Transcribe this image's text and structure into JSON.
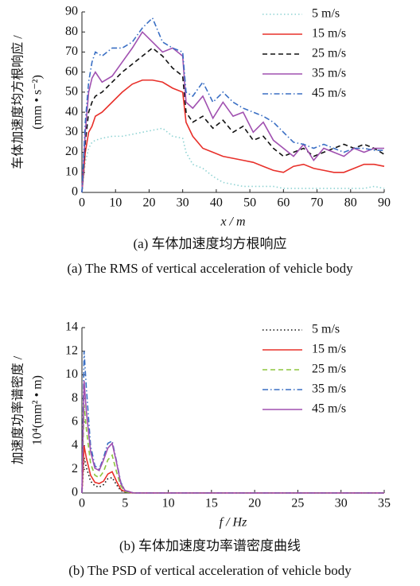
{
  "chart_data": [
    {
      "type": "line",
      "ylabel": [
        "车体加速度均方根响应 /",
        "(mm • s⁻²)"
      ],
      "xlabel": "x / m",
      "caption": [
        "(a) 车体加速度均方根响应",
        "(a)  The RMS of vertical acceleration of vehicle body"
      ],
      "x": [
        0,
        1,
        2,
        3,
        4,
        6,
        9,
        12,
        15,
        18,
        21,
        24,
        27,
        30,
        31,
        33,
        36,
        39,
        42,
        45,
        48,
        51,
        54,
        57,
        60,
        63,
        66,
        69,
        72,
        75,
        78,
        81,
        84,
        87,
        90
      ],
      "xlim": [
        0,
        90
      ],
      "xticks": [
        0,
        10,
        20,
        30,
        40,
        50,
        60,
        70,
        80,
        90
      ],
      "ylim": [
        0,
        90
      ],
      "yticks": [
        0,
        10,
        20,
        30,
        40,
        50,
        60,
        70,
        80,
        90
      ],
      "legend": "upper right",
      "series": [
        {
          "name": "5 m/s",
          "color": "#8fd3d3",
          "dash": "dotted",
          "values": [
            0,
            15,
            22,
            25,
            26,
            27,
            28,
            28,
            29,
            30,
            31,
            32,
            28,
            27,
            20,
            14,
            12,
            8,
            5,
            4,
            3,
            3,
            3,
            3,
            2,
            2,
            2,
            2,
            2,
            2,
            2,
            2,
            2,
            3,
            2
          ]
        },
        {
          "name": "15 m/s",
          "color": "#e8302a",
          "dash": "solid",
          "values": [
            0,
            20,
            30,
            33,
            38,
            40,
            45,
            50,
            54,
            56,
            56,
            55,
            52,
            50,
            35,
            28,
            22,
            20,
            18,
            17,
            16,
            15,
            13,
            11,
            10,
            13,
            14,
            12,
            11,
            10,
            10,
            12,
            14,
            14,
            13
          ]
        },
        {
          "name": "25 m/s",
          "color": "#111111",
          "dash": "dashed",
          "values": [
            0,
            25,
            40,
            45,
            48,
            50,
            55,
            60,
            64,
            68,
            72,
            68,
            62,
            58,
            40,
            35,
            38,
            32,
            36,
            30,
            33,
            26,
            28,
            22,
            18,
            20,
            22,
            18,
            20,
            22,
            24,
            22,
            24,
            22,
            19
          ]
        },
        {
          "name": "35 m/s",
          "color": "#a050b0",
          "dash": "solid",
          "values": [
            0,
            30,
            50,
            57,
            60,
            55,
            58,
            65,
            72,
            80,
            75,
            70,
            72,
            68,
            45,
            42,
            48,
            37,
            45,
            38,
            40,
            30,
            35,
            26,
            22,
            18,
            24,
            16,
            22,
            20,
            18,
            22,
            20,
            22,
            22
          ]
        },
        {
          "name": "45 m/s",
          "color": "#3a6fc4",
          "dash": "dashdot",
          "values": [
            0,
            35,
            55,
            65,
            70,
            68,
            72,
            72,
            75,
            82,
            87,
            75,
            72,
            70,
            50,
            48,
            55,
            45,
            50,
            45,
            42,
            40,
            38,
            35,
            30,
            25,
            24,
            22,
            24,
            22,
            20,
            22,
            22,
            21,
            21
          ]
        }
      ]
    },
    {
      "type": "line",
      "ylabel": [
        "加速度功率谱密度 /",
        "10⁴(mm² • m)"
      ],
      "xlabel": "f / Hz",
      "caption": [
        "(b) 车体加速度功率谱密度曲线",
        "(b)  The PSD of vertical acceleration of vehicle body"
      ],
      "x": [
        0,
        0.25,
        0.5,
        1,
        1.5,
        2,
        2.5,
        3,
        3.5,
        4,
        4.5,
        5,
        6,
        7,
        10,
        20,
        35
      ],
      "xlim": [
        0,
        35
      ],
      "xticks": [
        0,
        5,
        10,
        15,
        20,
        25,
        30,
        35
      ],
      "ylim": [
        0,
        14
      ],
      "yticks": [
        0,
        2,
        4,
        6,
        8,
        10,
        12,
        14
      ],
      "legend": "upper right",
      "series": [
        {
          "name": "5 m/s",
          "color": "#111111",
          "dash": "dotted",
          "values": [
            0,
            3,
            2.2,
            1,
            0.6,
            0.5,
            0.7,
            1.2,
            1.3,
            0.7,
            0.2,
            0.05,
            0,
            0,
            0,
            0,
            0
          ]
        },
        {
          "name": "15 m/s",
          "color": "#e8302a",
          "dash": "solid",
          "values": [
            0,
            4,
            3,
            1.5,
            0.9,
            0.8,
            1.0,
            1.6,
            1.8,
            1.0,
            0.3,
            0.1,
            0,
            0,
            0,
            0,
            0
          ]
        },
        {
          "name": "25 m/s",
          "color": "#8dc63f",
          "dash": "dashed",
          "values": [
            0,
            7.5,
            5.5,
            2.5,
            1.5,
            1.3,
            1.8,
            2.8,
            3.2,
            1.8,
            0.6,
            0.1,
            0,
            0,
            0,
            0,
            0
          ]
        },
        {
          "name": "35 m/s",
          "color": "#3a6fc4",
          "dash": "dashdot",
          "values": [
            0,
            12,
            9,
            4,
            2.3,
            2,
            3,
            4.2,
            4.4,
            2.7,
            0.9,
            0.2,
            0,
            0,
            0,
            0,
            0
          ]
        },
        {
          "name": "45 m/s",
          "color": "#a050b0",
          "dash": "solid",
          "values": [
            0,
            9.5,
            7,
            3.5,
            2.1,
            1.9,
            2.8,
            3.8,
            4.2,
            2.6,
            0.8,
            0.2,
            0,
            0,
            0,
            0,
            0
          ]
        }
      ]
    }
  ]
}
